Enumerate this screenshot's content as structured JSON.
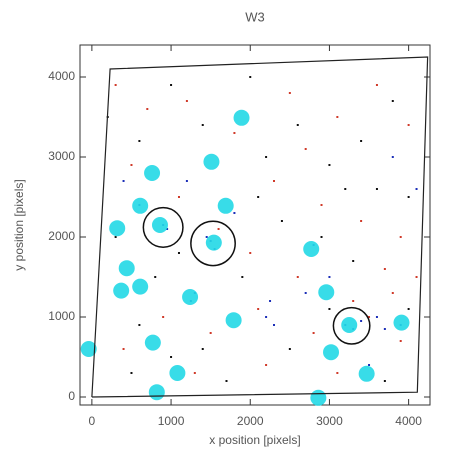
{
  "chart_data": {
    "type": "scatter",
    "title": "W3",
    "x_label": "x position [pixels]",
    "y_label": "y position [pixels]",
    "xlim": [
      -150,
      4270
    ],
    "ylim": [
      -100,
      4400
    ],
    "xticks": [
      0,
      1000,
      2000,
      3000,
      4000
    ],
    "yticks": [
      0,
      1000,
      2000,
      3000,
      4000
    ],
    "outline": {
      "x": [
        0,
        230,
        4240,
        4110,
        0
      ],
      "y": [
        0,
        4100,
        4250,
        60,
        0
      ],
      "color": "#222222"
    },
    "series": [
      {
        "color": "#d03a2a",
        "x": [
          300,
          700,
          1200,
          1800,
          2500,
          3100,
          3600,
          4000,
          500,
          1100,
          2300,
          2900,
          3400,
          3900,
          3700,
          3300,
          3500,
          3800,
          2600,
          2100,
          1500,
          900,
          400,
          1300,
          2200,
          2800,
          3100,
          3900,
          4100,
          2000,
          1600,
          2700
        ],
        "y": [
          3900,
          3600,
          3700,
          3300,
          3800,
          3500,
          3900,
          3400,
          2900,
          2500,
          2700,
          2400,
          2200,
          2000,
          1600,
          1200,
          1000,
          1300,
          1500,
          1100,
          800,
          1000,
          600,
          300,
          400,
          800,
          300,
          700,
          1500,
          1800,
          2100,
          3100
        ]
      },
      {
        "color": "#1c2fb8",
        "x": [
          1500,
          1550,
          1450,
          900,
          950,
          3200,
          3300,
          3400,
          3600,
          3700,
          2200,
          2250,
          2300,
          1800,
          600,
          1300,
          1250,
          2800,
          3000,
          3800,
          4100,
          1200,
          400,
          3500,
          3900,
          2700
        ],
        "y": [
          1950,
          1850,
          2000,
          2150,
          2100,
          900,
          850,
          950,
          1000,
          850,
          1000,
          1200,
          900,
          2300,
          2400,
          1300,
          1200,
          1900,
          1500,
          3000,
          2600,
          2700,
          2700,
          400,
          900,
          1300
        ]
      },
      {
        "color": "#111111",
        "x": [
          200,
          600,
          1000,
          1400,
          2000,
          2200,
          2600,
          3000,
          3400,
          3800,
          4000,
          300,
          800,
          1100,
          1900,
          2400,
          2900,
          3300,
          3600,
          600,
          1000,
          1700,
          2500,
          3000,
          3700,
          4000,
          2100,
          1400,
          500,
          3200
        ],
        "y": [
          3500,
          3200,
          3900,
          3400,
          4000,
          3000,
          3400,
          2900,
          3200,
          3700,
          2500,
          2000,
          1500,
          1800,
          1500,
          2200,
          2000,
          1700,
          2600,
          900,
          500,
          200,
          600,
          1100,
          200,
          1100,
          2500,
          600,
          300,
          2600
        ]
      }
    ],
    "markers": {
      "color": "#22d8e6",
      "x": [
        1890,
        1510,
        760,
        610,
        1690,
        320,
        1540,
        2770,
        440,
        370,
        610,
        1240,
        2960,
        1790,
        3910,
        3250,
        770,
        3020,
        -40,
        1080,
        3470,
        820,
        2860,
        860
      ],
      "y": [
        3490,
        2940,
        2800,
        2390,
        2390,
        2110,
        1930,
        1850,
        1610,
        1330,
        1380,
        1250,
        1310,
        960,
        930,
        900,
        680,
        560,
        600,
        300,
        290,
        60,
        -10,
        2150
      ]
    },
    "circles": {
      "color": "#111111",
      "x": [
        900,
        1530,
        3280
      ],
      "y": [
        2120,
        1920,
        890
      ],
      "r": [
        250,
        280,
        230
      ]
    }
  }
}
